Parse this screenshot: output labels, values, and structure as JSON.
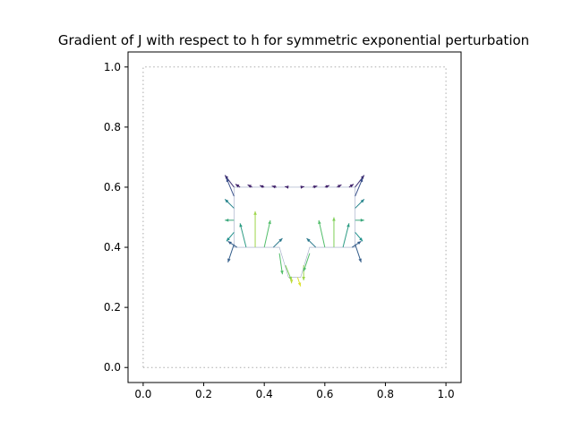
{
  "chart_data": {
    "type": "quiver",
    "title": "Gradient of J with respect to h for symmetric exponential perturbation",
    "xlabel": "",
    "ylabel": "",
    "xlim": [
      -0.05,
      1.05
    ],
    "ylim": [
      -0.05,
      1.05
    ],
    "xticks": [
      0.0,
      0.2,
      0.4,
      0.6,
      0.8,
      1.0
    ],
    "yticks": [
      0.0,
      0.2,
      0.4,
      0.6,
      0.8,
      1.0
    ],
    "xtick_labels": [
      "0.0",
      "0.2",
      "0.4",
      "0.6",
      "0.8",
      "1.0"
    ],
    "ytick_labels": [
      "0.0",
      "0.2",
      "0.4",
      "0.6",
      "0.8",
      "1.0"
    ],
    "grid": false,
    "colormap": "viridis",
    "domain_boundary": {
      "style": "dotted",
      "color": "#aaaaaa",
      "corners": [
        [
          0,
          0
        ],
        [
          1,
          0
        ],
        [
          1,
          1
        ],
        [
          0,
          1
        ]
      ]
    },
    "obstacle_outline": [
      [
        0.3,
        0.6
      ],
      [
        0.7,
        0.6
      ],
      [
        0.7,
        0.4
      ],
      [
        0.55,
        0.4
      ],
      [
        0.52,
        0.3
      ],
      [
        0.48,
        0.3
      ],
      [
        0.45,
        0.4
      ],
      [
        0.3,
        0.4
      ]
    ],
    "vectors": [
      {
        "x": 0.3,
        "y": 0.6,
        "u": -0.03,
        "v": 0.04,
        "m": 0.15
      },
      {
        "x": 0.32,
        "y": 0.6,
        "u": -0.015,
        "v": 0.01,
        "m": 0.1
      },
      {
        "x": 0.36,
        "y": 0.6,
        "u": -0.015,
        "v": 0.008,
        "m": 0.1
      },
      {
        "x": 0.4,
        "y": 0.6,
        "u": -0.015,
        "v": 0.006,
        "m": 0.1
      },
      {
        "x": 0.44,
        "y": 0.6,
        "u": -0.015,
        "v": 0.004,
        "m": 0.1
      },
      {
        "x": 0.48,
        "y": 0.6,
        "u": -0.012,
        "v": 0.002,
        "m": 0.1
      },
      {
        "x": 0.52,
        "y": 0.6,
        "u": 0.012,
        "v": 0.002,
        "m": 0.1
      },
      {
        "x": 0.56,
        "y": 0.6,
        "u": 0.015,
        "v": 0.004,
        "m": 0.1
      },
      {
        "x": 0.6,
        "y": 0.6,
        "u": 0.015,
        "v": 0.006,
        "m": 0.1
      },
      {
        "x": 0.64,
        "y": 0.6,
        "u": 0.015,
        "v": 0.008,
        "m": 0.1
      },
      {
        "x": 0.68,
        "y": 0.6,
        "u": 0.015,
        "v": 0.01,
        "m": 0.1
      },
      {
        "x": 0.7,
        "y": 0.6,
        "u": 0.03,
        "v": 0.04,
        "m": 0.15
      },
      {
        "x": 0.3,
        "y": 0.57,
        "u": -0.025,
        "v": 0.06,
        "m": 0.25
      },
      {
        "x": 0.3,
        "y": 0.53,
        "u": -0.03,
        "v": 0.03,
        "m": 0.45
      },
      {
        "x": 0.3,
        "y": 0.49,
        "u": -0.03,
        "v": 0.0,
        "m": 0.6
      },
      {
        "x": 0.3,
        "y": 0.45,
        "u": -0.025,
        "v": -0.03,
        "m": 0.5
      },
      {
        "x": 0.3,
        "y": 0.41,
        "u": -0.02,
        "v": -0.06,
        "m": 0.3
      },
      {
        "x": 0.7,
        "y": 0.57,
        "u": 0.025,
        "v": 0.06,
        "m": 0.25
      },
      {
        "x": 0.7,
        "y": 0.53,
        "u": 0.03,
        "v": 0.03,
        "m": 0.45
      },
      {
        "x": 0.7,
        "y": 0.49,
        "u": 0.03,
        "v": 0.0,
        "m": 0.6
      },
      {
        "x": 0.7,
        "y": 0.45,
        "u": 0.025,
        "v": -0.03,
        "m": 0.5
      },
      {
        "x": 0.7,
        "y": 0.41,
        "u": 0.02,
        "v": -0.06,
        "m": 0.3
      },
      {
        "x": 0.31,
        "y": 0.4,
        "u": -0.03,
        "v": 0.02,
        "m": 0.3
      },
      {
        "x": 0.34,
        "y": 0.4,
        "u": -0.02,
        "v": 0.08,
        "m": 0.55
      },
      {
        "x": 0.37,
        "y": 0.4,
        "u": 0.0,
        "v": 0.12,
        "m": 0.85
      },
      {
        "x": 0.4,
        "y": 0.4,
        "u": 0.02,
        "v": 0.09,
        "m": 0.7
      },
      {
        "x": 0.43,
        "y": 0.4,
        "u": 0.03,
        "v": 0.03,
        "m": 0.4
      },
      {
        "x": 0.57,
        "y": 0.4,
        "u": -0.03,
        "v": 0.03,
        "m": 0.4
      },
      {
        "x": 0.6,
        "y": 0.4,
        "u": -0.02,
        "v": 0.09,
        "m": 0.7
      },
      {
        "x": 0.63,
        "y": 0.4,
        "u": 0.0,
        "v": 0.1,
        "m": 0.8
      },
      {
        "x": 0.66,
        "y": 0.4,
        "u": 0.02,
        "v": 0.08,
        "m": 0.55
      },
      {
        "x": 0.69,
        "y": 0.4,
        "u": 0.03,
        "v": 0.02,
        "m": 0.3
      },
      {
        "x": 0.45,
        "y": 0.38,
        "u": 0.01,
        "v": -0.07,
        "m": 0.7
      },
      {
        "x": 0.47,
        "y": 0.34,
        "u": 0.02,
        "v": -0.05,
        "m": 0.8
      },
      {
        "x": 0.49,
        "y": 0.3,
        "u": 0.0,
        "v": -0.02,
        "m": 0.9
      },
      {
        "x": 0.51,
        "y": 0.3,
        "u": 0.01,
        "v": -0.03,
        "m": 0.95
      },
      {
        "x": 0.53,
        "y": 0.34,
        "u": 0.0,
        "v": -0.05,
        "m": 0.85
      },
      {
        "x": 0.55,
        "y": 0.38,
        "u": -0.02,
        "v": -0.06,
        "m": 0.7
      }
    ]
  }
}
